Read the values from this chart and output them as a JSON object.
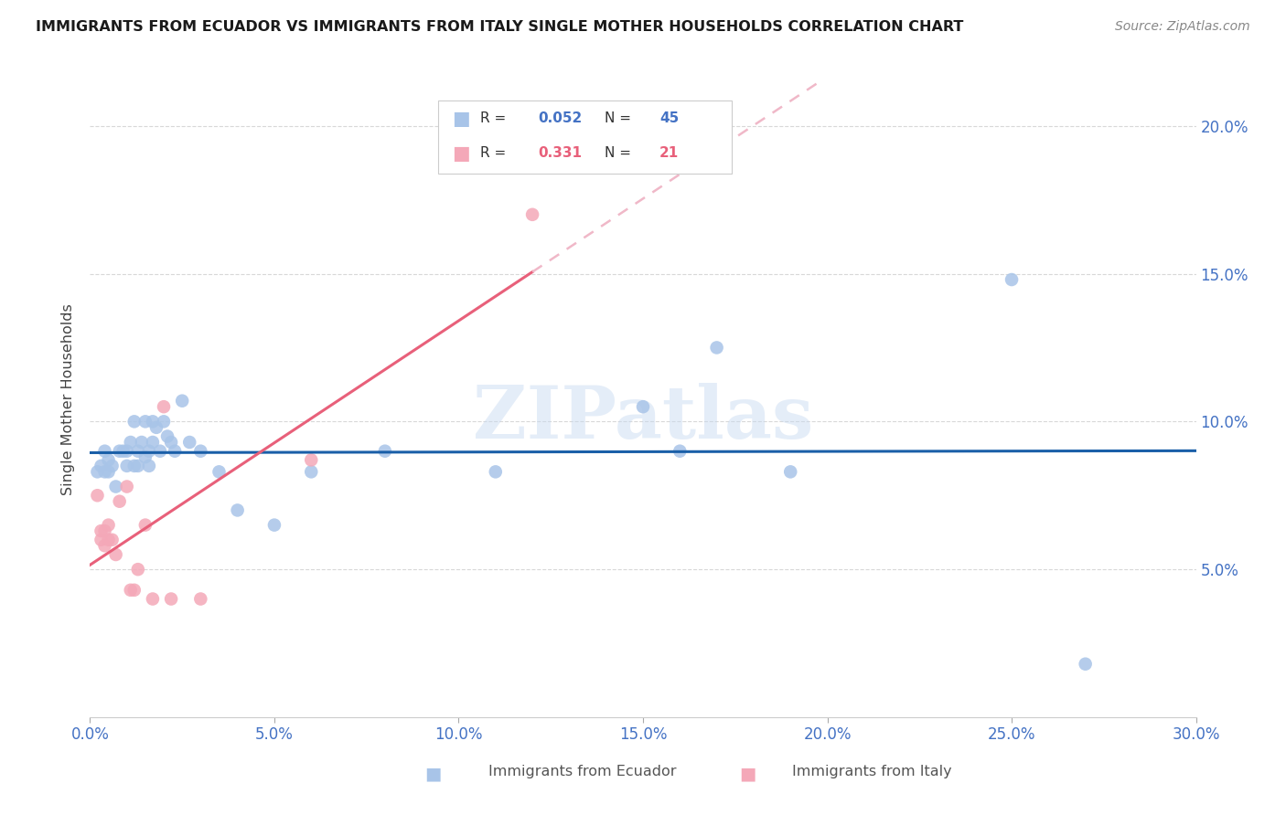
{
  "title": "IMMIGRANTS FROM ECUADOR VS IMMIGRANTS FROM ITALY SINGLE MOTHER HOUSEHOLDS CORRELATION CHART",
  "source": "Source: ZipAtlas.com",
  "ylabel": "Single Mother Households",
  "xlim": [
    0.0,
    0.3
  ],
  "ylim": [
    0.0,
    0.215
  ],
  "y_ticks": [
    0.05,
    0.1,
    0.15,
    0.2
  ],
  "x_ticks": [
    0.0,
    0.05,
    0.1,
    0.15,
    0.2,
    0.25,
    0.3
  ],
  "ecuador_color": "#a8c4e8",
  "italy_color": "#f4a8b8",
  "ecuador_line_color": "#1a5fa8",
  "italy_line_color": "#e8607a",
  "italy_dash_color": "#f0b8c8",
  "ecuador_x": [
    0.002,
    0.003,
    0.004,
    0.004,
    0.005,
    0.005,
    0.006,
    0.007,
    0.008,
    0.009,
    0.01,
    0.01,
    0.011,
    0.012,
    0.012,
    0.013,
    0.013,
    0.014,
    0.015,
    0.015,
    0.016,
    0.016,
    0.017,
    0.017,
    0.018,
    0.019,
    0.02,
    0.021,
    0.022,
    0.023,
    0.025,
    0.027,
    0.03,
    0.035,
    0.04,
    0.05,
    0.06,
    0.08,
    0.11,
    0.15,
    0.16,
    0.17,
    0.19,
    0.25,
    0.27
  ],
  "ecuador_y": [
    0.083,
    0.085,
    0.09,
    0.083,
    0.087,
    0.083,
    0.085,
    0.078,
    0.09,
    0.09,
    0.09,
    0.085,
    0.093,
    0.1,
    0.085,
    0.09,
    0.085,
    0.093,
    0.1,
    0.088,
    0.09,
    0.085,
    0.1,
    0.093,
    0.098,
    0.09,
    0.1,
    0.095,
    0.093,
    0.09,
    0.107,
    0.093,
    0.09,
    0.083,
    0.07,
    0.065,
    0.083,
    0.09,
    0.083,
    0.105,
    0.09,
    0.125,
    0.083,
    0.148,
    0.018
  ],
  "italy_x": [
    0.002,
    0.003,
    0.003,
    0.004,
    0.004,
    0.005,
    0.005,
    0.006,
    0.007,
    0.008,
    0.01,
    0.011,
    0.012,
    0.013,
    0.015,
    0.017,
    0.02,
    0.022,
    0.03,
    0.06,
    0.12
  ],
  "italy_y": [
    0.075,
    0.063,
    0.06,
    0.063,
    0.058,
    0.065,
    0.06,
    0.06,
    0.055,
    0.073,
    0.078,
    0.043,
    0.043,
    0.05,
    0.065,
    0.04,
    0.105,
    0.04,
    0.04,
    0.087,
    0.17
  ],
  "watermark": "ZIPatlas",
  "watermark_color": "#c5d8f0",
  "watermark_alpha": 0.45,
  "legend_ecuador_label": "Immigrants from Ecuador",
  "legend_italy_label": "Immigrants from Italy",
  "background_color": "#ffffff",
  "grid_color": "#d8d8d8",
  "tick_color": "#4472c4",
  "title_color": "#1a1a1a",
  "ylabel_color": "#444444",
  "source_color": "#888888"
}
